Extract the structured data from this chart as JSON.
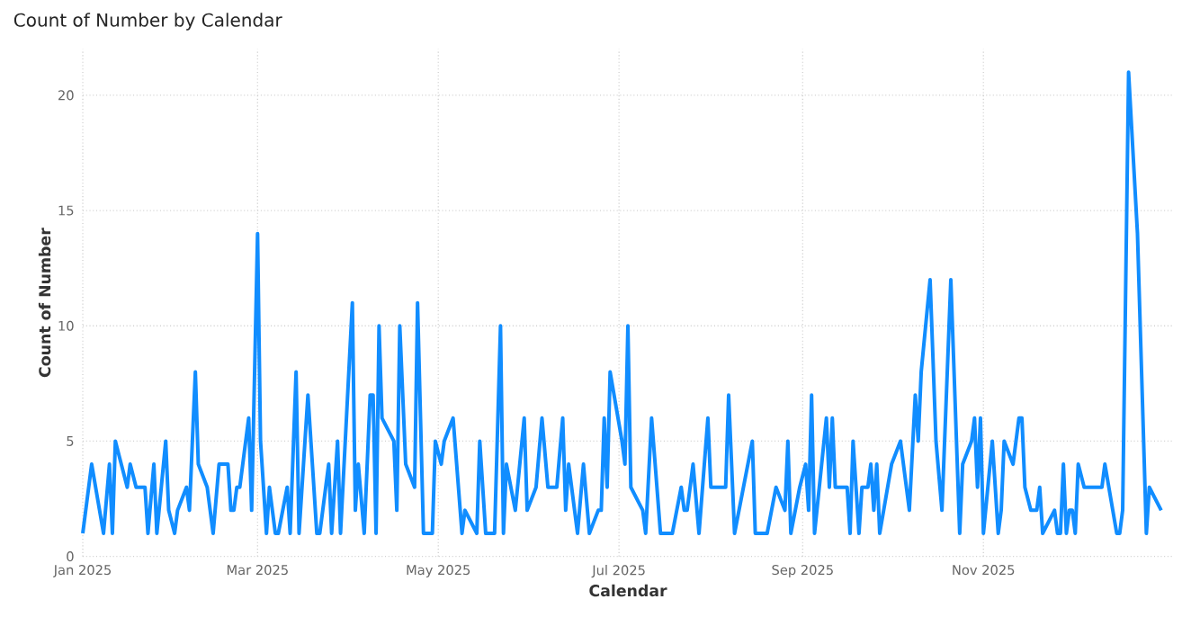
{
  "chart_data": {
    "type": "line",
    "title": "Count of Number by Calendar",
    "xlabel": "Calendar",
    "ylabel": "Count of Number",
    "x": [
      "2025-01-01",
      "2025-01-04",
      "2025-01-08",
      "2025-01-10",
      "2025-01-11",
      "2025-01-12",
      "2025-01-16",
      "2025-01-17",
      "2025-01-19",
      "2025-01-22",
      "2025-01-23",
      "2025-01-25",
      "2025-01-26",
      "2025-01-29",
      "2025-01-30",
      "2025-02-01",
      "2025-02-02",
      "2025-02-05",
      "2025-02-06",
      "2025-02-08",
      "2025-02-09",
      "2025-02-12",
      "2025-02-14",
      "2025-02-16",
      "2025-02-19",
      "2025-02-20",
      "2025-02-21",
      "2025-02-22",
      "2025-02-23",
      "2025-02-26",
      "2025-02-27",
      "2025-03-01",
      "2025-03-02",
      "2025-03-04",
      "2025-03-05",
      "2025-03-07",
      "2025-03-08",
      "2025-03-11",
      "2025-03-12",
      "2025-03-14",
      "2025-03-15",
      "2025-03-18",
      "2025-03-20",
      "2025-03-21",
      "2025-03-22",
      "2025-03-25",
      "2025-03-26",
      "2025-03-28",
      "2025-03-29",
      "2025-04-02",
      "2025-04-03",
      "2025-04-04",
      "2025-04-06",
      "2025-04-08",
      "2025-04-09",
      "2025-04-10",
      "2025-04-11",
      "2025-04-12",
      "2025-04-16",
      "2025-04-17",
      "2025-04-18",
      "2025-04-20",
      "2025-04-23",
      "2025-04-24",
      "2025-04-26",
      "2025-04-29",
      "2025-04-30",
      "2025-05-02",
      "2025-05-03",
      "2025-05-06",
      "2025-05-09",
      "2025-05-10",
      "2025-05-14",
      "2025-05-15",
      "2025-05-17",
      "2025-05-20",
      "2025-05-22",
      "2025-05-23",
      "2025-05-24",
      "2025-05-27",
      "2025-05-30",
      "2025-05-31",
      "2025-06-03",
      "2025-06-05",
      "2025-06-07",
      "2025-06-10",
      "2025-06-12",
      "2025-06-13",
      "2025-06-14",
      "2025-06-17",
      "2025-06-19",
      "2025-06-21",
      "2025-06-24",
      "2025-06-25",
      "2025-06-26",
      "2025-06-27",
      "2025-06-28",
      "2025-07-02",
      "2025-07-03",
      "2025-07-04",
      "2025-07-05",
      "2025-07-09",
      "2025-07-10",
      "2025-07-12",
      "2025-07-15",
      "2025-07-19",
      "2025-07-22",
      "2025-07-23",
      "2025-07-24",
      "2025-07-26",
      "2025-07-28",
      "2025-07-31",
      "2025-08-01",
      "2025-08-06",
      "2025-08-07",
      "2025-08-09",
      "2025-08-15",
      "2025-08-16",
      "2025-08-20",
      "2025-08-23",
      "2025-08-26",
      "2025-08-27",
      "2025-08-28",
      "2025-08-31",
      "2025-09-02",
      "2025-09-03",
      "2025-09-04",
      "2025-09-05",
      "2025-09-09",
      "2025-09-10",
      "2025-09-11",
      "2025-09-12",
      "2025-09-16",
      "2025-09-17",
      "2025-09-18",
      "2025-09-20",
      "2025-09-21",
      "2025-09-23",
      "2025-09-24",
      "2025-09-25",
      "2025-09-26",
      "2025-09-27",
      "2025-10-01",
      "2025-10-04",
      "2025-10-07",
      "2025-10-09",
      "2025-10-10",
      "2025-10-11",
      "2025-10-14",
      "2025-10-16",
      "2025-10-18",
      "2025-10-21",
      "2025-10-24",
      "2025-10-25",
      "2025-10-28",
      "2025-10-29",
      "2025-10-30",
      "2025-10-31",
      "2025-11-01",
      "2025-11-04",
      "2025-11-06",
      "2025-11-07",
      "2025-11-08",
      "2025-11-11",
      "2025-11-13",
      "2025-11-14",
      "2025-11-15",
      "2025-11-17",
      "2025-11-19",
      "2025-11-20",
      "2025-11-21",
      "2025-11-25",
      "2025-11-26",
      "2025-11-27",
      "2025-11-28",
      "2025-11-29",
      "2025-11-30",
      "2025-12-01",
      "2025-12-02",
      "2025-12-03",
      "2025-12-05",
      "2025-12-11",
      "2025-12-12",
      "2025-12-16",
      "2025-12-17",
      "2025-12-18",
      "2025-12-20",
      "2025-12-23",
      "2025-12-26",
      "2025-12-27",
      "2025-12-31"
    ],
    "series": [
      {
        "color": "#118dff",
        "values": [
          1,
          4,
          1,
          4,
          1,
          5,
          3,
          4,
          3,
          3,
          1,
          4,
          1,
          5,
          2,
          1,
          2,
          3,
          2,
          8,
          4,
          3,
          1,
          4,
          4,
          2,
          2,
          3,
          3,
          6,
          2,
          14,
          5,
          1,
          3,
          1,
          1,
          3,
          1,
          8,
          1,
          7,
          3,
          1,
          1,
          4,
          1,
          5,
          1,
          11,
          2,
          4,
          1,
          7,
          7,
          1,
          10,
          6,
          5,
          2,
          10,
          4,
          3,
          11,
          1,
          1,
          5,
          4,
          5,
          6,
          1,
          2,
          1,
          5,
          1,
          1,
          10,
          1,
          4,
          2,
          6,
          2,
          3,
          6,
          3,
          3,
          6,
          2,
          4,
          1,
          4,
          1,
          2,
          2,
          6,
          3,
          8,
          5,
          4,
          10,
          3,
          2,
          1,
          6,
          1,
          1,
          3,
          2,
          2,
          4,
          1,
          6,
          3,
          3,
          7,
          1,
          5,
          1,
          1,
          3,
          2,
          5,
          1,
          3,
          4,
          2,
          7,
          1,
          6,
          3,
          6,
          3,
          3,
          1,
          5,
          1,
          3,
          3,
          4,
          2,
          4,
          1,
          4,
          5,
          2,
          7,
          5,
          8,
          12,
          5,
          2,
          12,
          1,
          4,
          5,
          6,
          3,
          6,
          1,
          5,
          1,
          2,
          5,
          4,
          6,
          6,
          3,
          2,
          2,
          3,
          1,
          2,
          1,
          1,
          4,
          1,
          2,
          2,
          1,
          4,
          3,
          3,
          4,
          1,
          1,
          2,
          21,
          14,
          1,
          3,
          2
        ]
      }
    ],
    "xlim": [
      "2025-01-01",
      "2026-01-04"
    ],
    "ylim": [
      0,
      22
    ],
    "xticks": [
      {
        "value": "2025-01-01",
        "label": "Jan 2025"
      },
      {
        "value": "2025-03-01",
        "label": "Mar 2025"
      },
      {
        "value": "2025-05-01",
        "label": "May 2025"
      },
      {
        "value": "2025-07-01",
        "label": "Jul 2025"
      },
      {
        "value": "2025-09-01",
        "label": "Sep 2025"
      },
      {
        "value": "2025-11-01",
        "label": "Nov 2025"
      }
    ],
    "yticks": [
      0,
      5,
      10,
      15,
      20
    ],
    "grid": true,
    "line_style": "solid"
  }
}
